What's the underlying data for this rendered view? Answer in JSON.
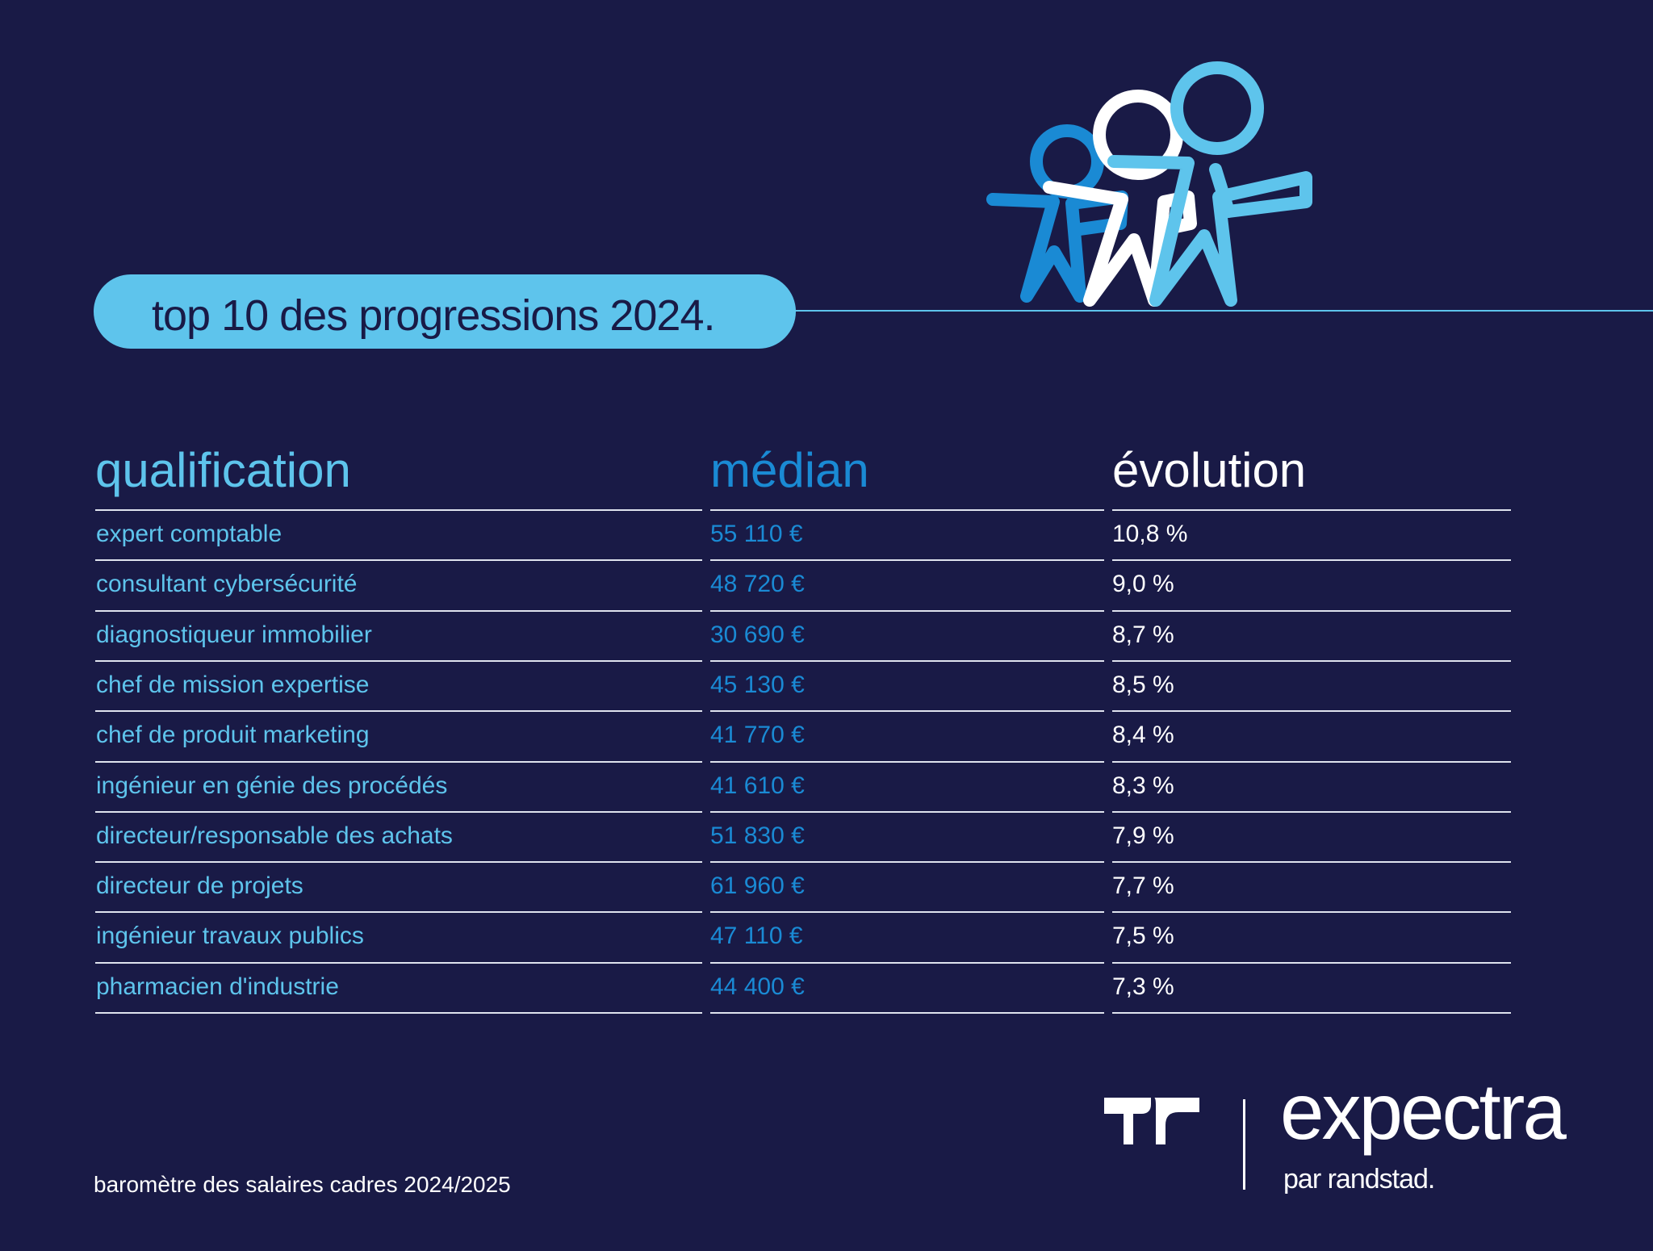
{
  "title": "top 10 des progressions 2024.",
  "table": {
    "headers": {
      "qualification": "qualification",
      "median": "médian",
      "evolution": "évolution"
    },
    "rows": [
      {
        "qualification": "expert comptable",
        "median": "55 110 €",
        "evolution": "10,8 %"
      },
      {
        "qualification": "consultant cybersécurité",
        "median": "48 720 €",
        "evolution": "9,0 %"
      },
      {
        "qualification": "diagnostiqueur immobilier",
        "median": "30 690 €",
        "evolution": "8,7 %"
      },
      {
        "qualification": "chef de mission expertise",
        "median": "45 130 €",
        "evolution": "8,5 %"
      },
      {
        "qualification": "chef de produit marketing",
        "median": "41 770 €",
        "evolution": "8,4 %"
      },
      {
        "qualification": "ingénieur en génie des procédés",
        "median": "41 610 €",
        "evolution": "8,3 %"
      },
      {
        "qualification": "directeur/responsable des achats",
        "median": "51 830 €",
        "evolution": "7,9 %"
      },
      {
        "qualification": "directeur de projets",
        "median": "61 960 €",
        "evolution": "7,7 %"
      },
      {
        "qualification": "ingénieur travaux publics",
        "median": "47 110 €",
        "evolution": "7,5 %"
      },
      {
        "qualification": "pharmacien d'industrie",
        "median": "44 400 €",
        "evolution": "7,3 %"
      }
    ]
  },
  "footer": "baromètre des salaires cadres 2024/2025",
  "brand": {
    "name": "expectra",
    "tagline": "par randstad."
  },
  "colors": {
    "background": "#191a46",
    "accent_light": "#5ec4ec",
    "accent_mid": "#1a8ad4",
    "text_white": "#ffffff"
  },
  "icons": [
    "people-illustration-icon",
    "randstad-logo-icon"
  ]
}
